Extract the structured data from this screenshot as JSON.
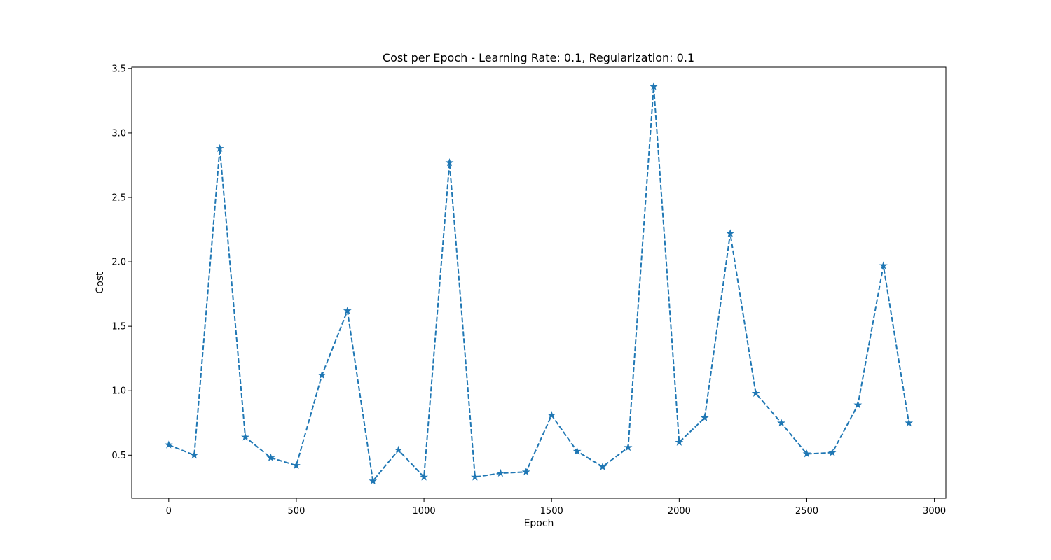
{
  "chart_data": {
    "type": "line",
    "title": "Cost per Epoch - Learning Rate: 0.1, Regularization: 0.1",
    "xlabel": "Epoch",
    "ylabel": "Cost",
    "xlim": [
      -145,
      3045
    ],
    "ylim": [
      0.165,
      3.51
    ],
    "xticks": [
      0,
      500,
      1000,
      1500,
      2000,
      2500,
      3000
    ],
    "xtick_labels": [
      "0",
      "500",
      "1000",
      "1500",
      "2000",
      "2500",
      "3000"
    ],
    "yticks": [
      0.5,
      1.0,
      1.5,
      2.0,
      2.5,
      3.0,
      3.5
    ],
    "ytick_labels": [
      "0.5",
      "1.0",
      "1.5",
      "2.0",
      "2.5",
      "3.0",
      "3.5"
    ],
    "grid": false,
    "series": [
      {
        "line_style": "dashed",
        "marker": "star",
        "color": "#1f77b4",
        "x": [
          0,
          100,
          200,
          300,
          400,
          500,
          600,
          700,
          800,
          900,
          1000,
          1100,
          1200,
          1300,
          1400,
          1500,
          1600,
          1700,
          1800,
          1900,
          2000,
          2100,
          2200,
          2300,
          2400,
          2500,
          2600,
          2700,
          2800,
          2900
        ],
        "y": [
          0.58,
          0.5,
          2.88,
          0.64,
          0.48,
          0.42,
          1.12,
          1.62,
          0.3,
          0.54,
          0.33,
          2.77,
          0.33,
          0.36,
          0.37,
          0.81,
          0.53,
          0.41,
          0.56,
          3.36,
          0.6,
          0.79,
          2.22,
          0.98,
          0.75,
          0.51,
          0.52,
          0.89,
          1.97,
          0.75
        ]
      }
    ]
  }
}
